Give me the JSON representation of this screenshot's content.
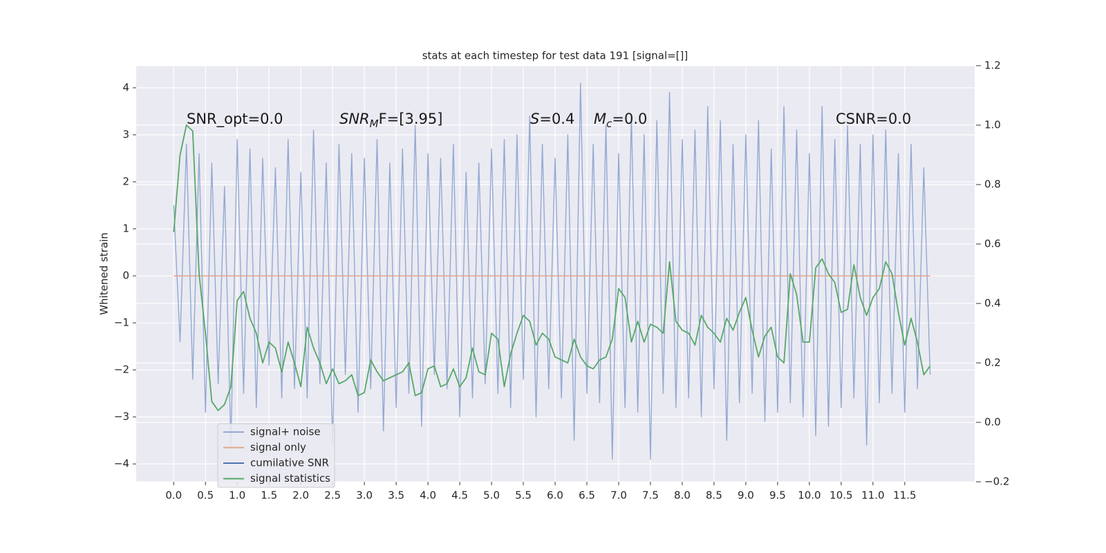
{
  "chart_data": {
    "type": "line",
    "title": "stats at each timestep for test data 191 [signal=[]]",
    "ylabel": "Whitened strain",
    "annotations": [
      {
        "main": "SNR_opt=0.0"
      },
      {
        "main": "SNR",
        "sub": "M",
        "tail": "F=[3.95]"
      },
      {
        "main": "S",
        "tail": "=0.4"
      },
      {
        "main": "M",
        "sub": "c",
        "tail": "=0.0"
      },
      {
        "main": "CSNR=0.0"
      }
    ],
    "x": [
      0.0,
      0.1,
      0.2,
      0.3,
      0.4,
      0.5,
      0.6,
      0.7,
      0.8,
      0.9,
      1.0,
      1.1,
      1.2,
      1.3,
      1.4,
      1.5,
      1.6,
      1.7,
      1.8,
      1.9,
      2.0,
      2.1,
      2.2,
      2.3,
      2.4,
      2.5,
      2.6,
      2.7,
      2.8,
      2.9,
      3.0,
      3.1,
      3.2,
      3.3,
      3.4,
      3.5,
      3.6,
      3.7,
      3.8,
      3.9,
      4.0,
      4.1,
      4.2,
      4.3,
      4.4,
      4.5,
      4.6,
      4.7,
      4.8,
      4.9,
      5.0,
      5.1,
      5.2,
      5.3,
      5.4,
      5.5,
      5.6,
      5.7,
      5.8,
      5.9,
      6.0,
      6.1,
      6.2,
      6.3,
      6.4,
      6.5,
      6.6,
      6.7,
      6.8,
      6.9,
      7.0,
      7.1,
      7.2,
      7.3,
      7.4,
      7.5,
      7.6,
      7.7,
      7.8,
      7.9,
      8.0,
      8.1,
      8.2,
      8.3,
      8.4,
      8.5,
      8.6,
      8.7,
      8.8,
      8.9,
      9.0,
      9.1,
      9.2,
      9.3,
      9.4,
      9.5,
      9.6,
      9.7,
      9.8,
      9.9,
      10.0,
      10.1,
      10.2,
      10.3,
      10.4,
      10.5,
      10.6,
      10.7,
      10.8,
      10.9,
      11.0,
      11.1,
      11.2,
      11.3,
      11.4,
      11.5,
      11.6,
      11.7,
      11.8,
      11.9
    ],
    "series": [
      {
        "name": "signal+ noise",
        "color": "#93a9d1",
        "values": [
          1.5,
          -1.4,
          2.8,
          -2.2,
          2.6,
          -2.9,
          2.4,
          -2.3,
          1.9,
          -3.6,
          2.9,
          -2.5,
          2.7,
          -2.8,
          2.5,
          -1.9,
          2.3,
          -2.6,
          2.9,
          -2.4,
          2.2,
          -2.6,
          3.1,
          -2.3,
          2.4,
          -3.6,
          2.8,
          -2.1,
          2.6,
          -2.9,
          2.5,
          -2.4,
          2.9,
          -3.3,
          2.4,
          -2.8,
          2.7,
          -2.5,
          3.2,
          -3.2,
          2.6,
          -2.1,
          2.5,
          -2.4,
          2.8,
          -3.0,
          2.2,
          -2.6,
          2.4,
          -2.3,
          2.7,
          -2.5,
          2.9,
          -2.8,
          3.0,
          -2.2,
          3.4,
          -3.0,
          2.8,
          -2.4,
          2.5,
          -2.6,
          3.0,
          -3.5,
          4.1,
          -2.5,
          2.8,
          -2.7,
          3.2,
          -3.9,
          2.6,
          -2.8,
          3.4,
          -2.9,
          3.0,
          -3.9,
          3.3,
          -2.5,
          3.9,
          -2.8,
          2.9,
          -2.6,
          3.1,
          -3.0,
          3.6,
          -2.4,
          3.3,
          -3.5,
          2.8,
          -2.7,
          3.0,
          -2.5,
          3.3,
          -3.1,
          2.7,
          -2.9,
          3.6,
          -2.7,
          3.1,
          -3.0,
          2.6,
          -3.4,
          3.6,
          -3.2,
          2.9,
          -2.8,
          3.2,
          -2.6,
          2.8,
          -3.6,
          3.0,
          -2.7,
          3.1,
          -2.5,
          2.6,
          -2.9,
          2.8,
          -2.4,
          2.3,
          -2.1
        ]
      },
      {
        "name": "signal only",
        "color": "#e3a48c",
        "values": [
          0,
          0,
          0,
          0,
          0,
          0,
          0,
          0,
          0,
          0,
          0,
          0,
          0,
          0,
          0,
          0,
          0,
          0,
          0,
          0,
          0,
          0,
          0,
          0,
          0,
          0,
          0,
          0,
          0,
          0,
          0,
          0,
          0,
          0,
          0,
          0,
          0,
          0,
          0,
          0,
          0,
          0,
          0,
          0,
          0,
          0,
          0,
          0,
          0,
          0,
          0,
          0,
          0,
          0,
          0,
          0,
          0,
          0,
          0,
          0,
          0,
          0,
          0,
          0,
          0,
          0,
          0,
          0,
          0,
          0,
          0,
          0,
          0,
          0,
          0,
          0,
          0,
          0,
          0,
          0,
          0,
          0,
          0,
          0,
          0,
          0,
          0,
          0,
          0,
          0,
          0,
          0,
          0,
          0,
          0,
          0,
          0,
          0,
          0,
          0,
          0,
          0,
          0,
          0,
          0,
          0,
          0,
          0,
          0,
          0,
          0,
          0,
          0,
          0,
          0,
          0,
          0,
          0,
          0,
          0
        ]
      },
      {
        "name": "cumilative SNR",
        "color": "#4c72b0",
        "values": [
          null,
          null,
          null,
          null,
          null,
          null,
          null,
          null,
          null,
          null,
          null,
          null,
          null,
          null,
          null,
          null,
          null,
          null,
          null,
          null,
          null,
          null,
          null,
          null,
          null,
          null,
          null,
          null,
          null,
          null,
          null,
          null,
          null,
          null,
          null,
          null,
          null,
          null,
          null,
          null,
          null,
          null,
          null,
          null,
          null,
          null,
          null,
          null,
          null,
          null,
          null,
          null,
          null,
          null,
          null,
          null,
          null,
          null,
          null,
          null,
          null,
          null,
          null,
          null,
          null,
          null,
          null,
          null,
          null,
          null,
          null,
          null,
          null,
          null,
          null,
          null,
          null,
          null,
          null,
          null,
          null,
          null,
          null,
          null,
          null,
          null,
          null,
          null,
          null,
          null,
          null,
          null,
          null,
          null,
          null,
          null,
          null,
          null,
          null,
          null,
          null,
          null,
          null,
          null,
          null,
          null,
          null,
          null,
          null,
          null,
          null,
          null,
          null,
          null,
          null,
          null,
          null,
          null,
          null,
          null
        ]
      },
      {
        "name": "signal statistics",
        "color": "#55a868",
        "axis": "y2",
        "values": [
          0.64,
          0.9,
          1.0,
          0.98,
          0.5,
          0.3,
          0.07,
          0.04,
          0.06,
          0.12,
          0.41,
          0.44,
          0.35,
          0.3,
          0.2,
          0.27,
          0.25,
          0.17,
          0.27,
          0.2,
          0.12,
          0.32,
          0.25,
          0.2,
          0.13,
          0.18,
          0.13,
          0.14,
          0.16,
          0.09,
          0.1,
          0.21,
          0.17,
          0.14,
          0.15,
          0.16,
          0.17,
          0.2,
          0.09,
          0.1,
          0.18,
          0.19,
          0.12,
          0.13,
          0.18,
          0.12,
          0.15,
          0.25,
          0.17,
          0.16,
          0.3,
          0.28,
          0.12,
          0.23,
          0.3,
          0.36,
          0.34,
          0.26,
          0.3,
          0.28,
          0.22,
          0.21,
          0.2,
          0.28,
          0.22,
          0.19,
          0.18,
          0.21,
          0.22,
          0.28,
          0.45,
          0.42,
          0.27,
          0.34,
          0.27,
          0.33,
          0.32,
          0.3,
          0.54,
          0.34,
          0.31,
          0.3,
          0.26,
          0.36,
          0.32,
          0.3,
          0.27,
          0.35,
          0.31,
          0.37,
          0.42,
          0.31,
          0.22,
          0.29,
          0.32,
          0.22,
          0.2,
          0.5,
          0.43,
          0.27,
          0.27,
          0.52,
          0.55,
          0.5,
          0.47,
          0.37,
          0.38,
          0.53,
          0.42,
          0.36,
          0.42,
          0.45,
          0.54,
          0.5,
          0.37,
          0.26,
          0.35,
          0.27,
          0.16,
          0.19
        ]
      }
    ],
    "xlim": [
      -0.59,
      12.6
    ],
    "ylim": [
      -4.38,
      4.47
    ],
    "y2lim": [
      -0.2,
      1.2
    ],
    "xticks": [
      {
        "value": 0,
        "label": "0.0"
      },
      0.5,
      {
        "value": 1,
        "label": "1.0"
      },
      1.5,
      {
        "value": 2,
        "label": "2.0"
      },
      2.5,
      {
        "value": 3,
        "label": "3.0"
      },
      3.5,
      {
        "value": 4,
        "label": "4.0"
      },
      4.5,
      {
        "value": 5,
        "label": "5.0"
      },
      5.5,
      {
        "value": 6,
        "label": "6.0"
      },
      6.5,
      {
        "value": 7,
        "label": "7.0"
      },
      7.5,
      {
        "value": 8,
        "label": "8.0"
      },
      8.5,
      {
        "value": 9,
        "label": "9.0"
      },
      9.5,
      {
        "value": 10,
        "label": "10.0"
      },
      10.5,
      {
        "value": 11,
        "label": "11.0"
      },
      11.5
    ],
    "yticks": [
      {
        "value": -4,
        "label": "−4"
      },
      {
        "value": -3,
        "label": "−3"
      },
      {
        "value": -2,
        "label": "−2"
      },
      {
        "value": -1,
        "label": "−1"
      },
      0,
      1,
      2,
      3,
      4
    ],
    "y2ticks": [
      {
        "value": -0.2,
        "label": "−0.2"
      },
      {
        "value": 0,
        "label": "0.0"
      },
      0.2,
      0.4,
      0.6,
      0.8,
      {
        "value": 1,
        "label": "1.0"
      },
      1.2
    ],
    "grid": true,
    "legend": "lower left"
  }
}
